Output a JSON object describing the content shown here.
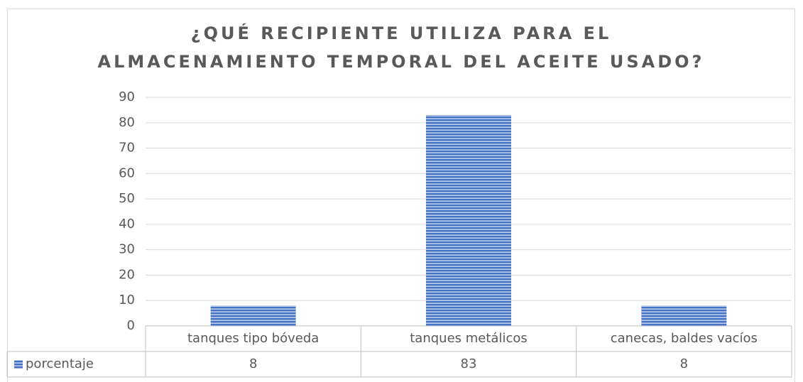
{
  "chart_data": {
    "type": "bar",
    "title": [
      "¿QUÉ RECIPIENTE UTILIZA PARA EL",
      "ALMACENAMIENTO TEMPORAL DEL ACEITE USADO?"
    ],
    "categories": [
      "tanques tipo bóveda",
      "tanques metálicos",
      "canecas, baldes vacíos"
    ],
    "series": [
      {
        "name": "porcentaje",
        "color": "#4472c4",
        "values": [
          8,
          83,
          8
        ]
      }
    ],
    "ylim": [
      0,
      90
    ],
    "yticks": [
      0,
      10,
      20,
      30,
      40,
      50,
      60,
      70,
      80,
      90
    ],
    "grid": true,
    "legend": "data-table"
  }
}
